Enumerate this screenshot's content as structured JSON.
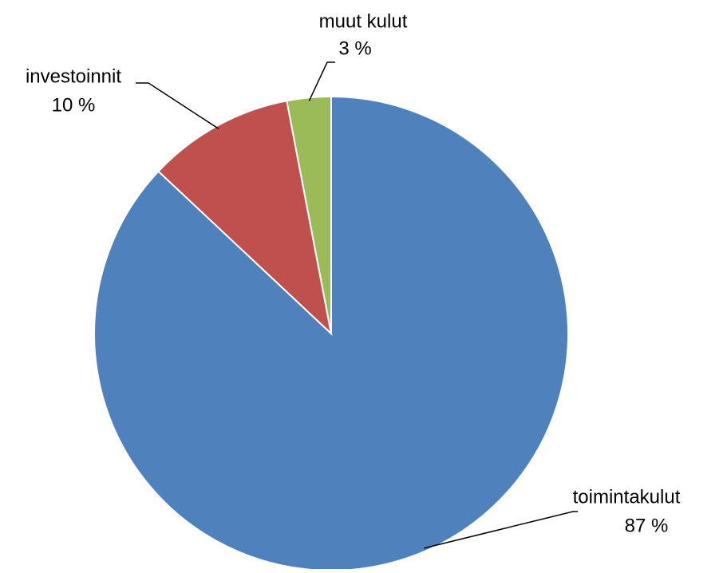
{
  "chart_data": {
    "type": "pie",
    "categories": [
      "toimintakulut",
      "investoinnit",
      "muut kulut"
    ],
    "values": [
      87,
      10,
      3
    ],
    "value_labels": [
      "87 %",
      "10 %",
      "3 %"
    ],
    "colors": [
      "#4f81bd",
      "#c0504d",
      "#9bbb59"
    ]
  }
}
